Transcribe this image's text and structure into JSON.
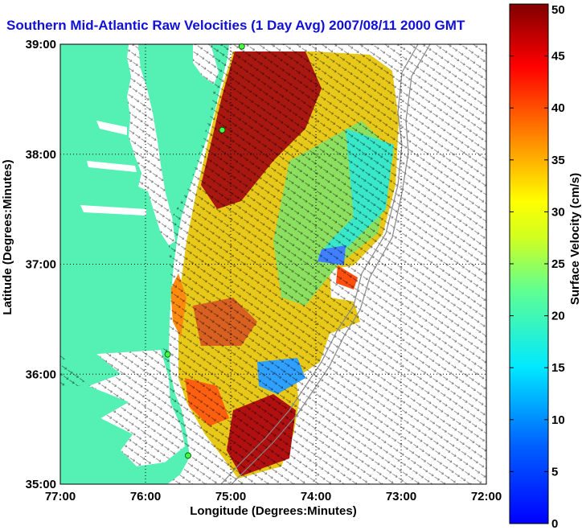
{
  "title": "Southern Mid-Atlantic Raw Velocities (1 Day Avg) 2007/08/11 2000 GMT",
  "map": {
    "xlabel": "Longitude (Degrees:Minutes)",
    "ylabel": "Latitude (Degrees:Minutes)",
    "x_ticks": [
      "77:00",
      "76:00",
      "75:00",
      "74:00",
      "73:00",
      "72:00"
    ],
    "y_ticks": [
      "39:00",
      "38:00",
      "37:00",
      "36:00",
      "35:00"
    ],
    "xlim": [
      -77,
      -72
    ],
    "ylim": [
      35,
      39
    ],
    "grid": "dotted",
    "land_color": "#55f0b4",
    "water_color": "#ffffff"
  },
  "colorbar": {
    "label": "Surface Velocity (cm/s)",
    "min": 0,
    "max": 50,
    "ticks": [
      "50",
      "45",
      "40",
      "35",
      "30",
      "25",
      "20",
      "15",
      "10",
      "5",
      "0"
    ],
    "colormap": "jet"
  },
  "stations": [
    {
      "lon": -74.87,
      "lat": 38.98
    },
    {
      "lon": -75.1,
      "lat": 38.22
    },
    {
      "lon": -75.74,
      "lat": 36.18
    },
    {
      "lon": -75.5,
      "lat": 35.26
    }
  ]
}
